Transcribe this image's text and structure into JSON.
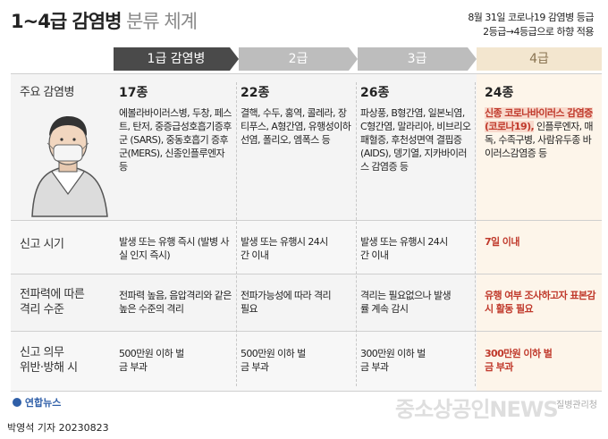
{
  "header": {
    "title_bold": "1~4급 감염병",
    "title_light": "분류 체계",
    "note_line1": "8월 31일 코로나19 감염병 등급",
    "note_line2": "2등급→4등급으로 하향 적용"
  },
  "tabs": [
    "1급 감염병",
    "2급",
    "3급",
    "4급"
  ],
  "rows": {
    "main_disease": {
      "label": "주요 감염병",
      "c1_count": "17종",
      "c1_text": "에볼라바이러스병, 두창, 페스트, 탄저, 중증급성호흡기증후군 (SARS), 중동호흡기 증후군(MERS), 신종인플루엔자 등",
      "c2_count": "22종",
      "c2_text": "결핵, 수두, 홍역, 콜레라, 장티푸스, A형간염, 유행성이하선염, 폴리오, 엠폭스 등",
      "c3_count": "26종",
      "c3_text": "파상풍, B형간염, 일본뇌염, C형간염, 말라리아, 비브리오 패혈증, 후천성면역 결핍증(AIDS), 뎅기열, 지카바이러스 감염증 등",
      "c4_count": "24종",
      "c4_highlight": "신종 코로나바이러스 감염증(코로나19),",
      "c4_text": "인플루엔자, 매독, 수족구병, 사람유두종 바이러스감염증 등"
    },
    "report_time": {
      "label": "신고 시기",
      "c1": "발생 또는 유행 즉시 (발병 사실 인지 즉시)",
      "c2": "발생 또는 유행시 24시간 이내",
      "c3": "발생 또는 유행시 24시간 이내",
      "c4": "7일 이내"
    },
    "isolation": {
      "label_line1": "전파력에 따른",
      "label_line2": "격리 수준",
      "c1": "전파력 높음, 음압격리와 같은 높은 수준의 격리",
      "c2": "전파가능성에 따라 격리 필요",
      "c3": "격리는 필요없으나 발생률 계속 감시",
      "c4": "유행 여부 조사하고자 표본감시 활동 필요"
    },
    "penalty": {
      "label_line1": "신고 의무",
      "label_line2": "위반·방해 시",
      "c1": "500만원 이하 벌금 부과",
      "c2": "500만원 이하 벌금 부과",
      "c3": "300만원 이하 벌금 부과",
      "c4": "300만원 이하 벌금 부과"
    }
  },
  "footer": {
    "logo": "연합뉴스",
    "byline": "박영석 기자  20230823",
    "source": "질병관리청",
    "watermark": "중소상공인NEWS"
  }
}
